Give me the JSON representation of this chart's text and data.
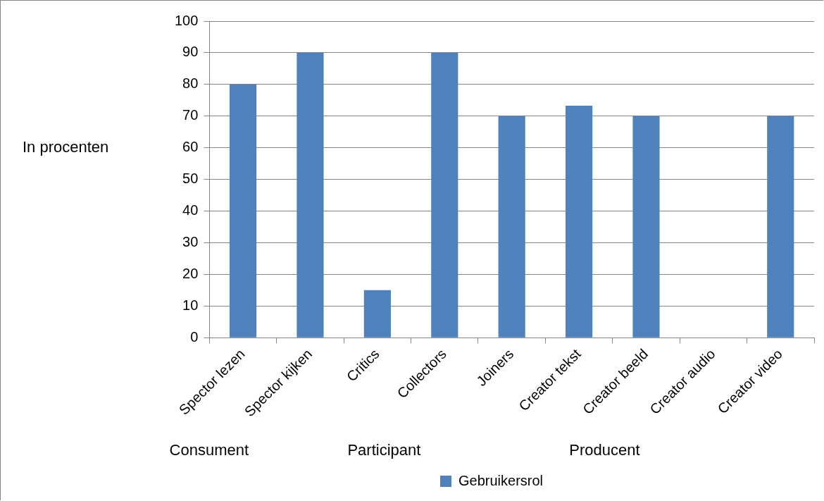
{
  "chart_data": {
    "type": "bar",
    "ylabel": "In procenten",
    "categories": [
      "Spector lezen",
      "Spector kijken",
      "Critics",
      "Collectors",
      "Joiners",
      "Creator tekst",
      "Creator beeld",
      "Creator audio",
      "Creator video"
    ],
    "series": [
      {
        "name": "Gebruikersrol",
        "color": "#4f81bd",
        "values": [
          80,
          90,
          15,
          90,
          70,
          73.3,
          70,
          0,
          70
        ]
      }
    ],
    "ylim": [
      0,
      100
    ],
    "yticks": [
      0,
      10,
      20,
      30,
      40,
      50,
      60,
      70,
      80,
      90,
      100
    ],
    "grid": "y",
    "legend": "bottom",
    "annotations": [
      "Consument",
      "Participant",
      "Producent"
    ]
  }
}
